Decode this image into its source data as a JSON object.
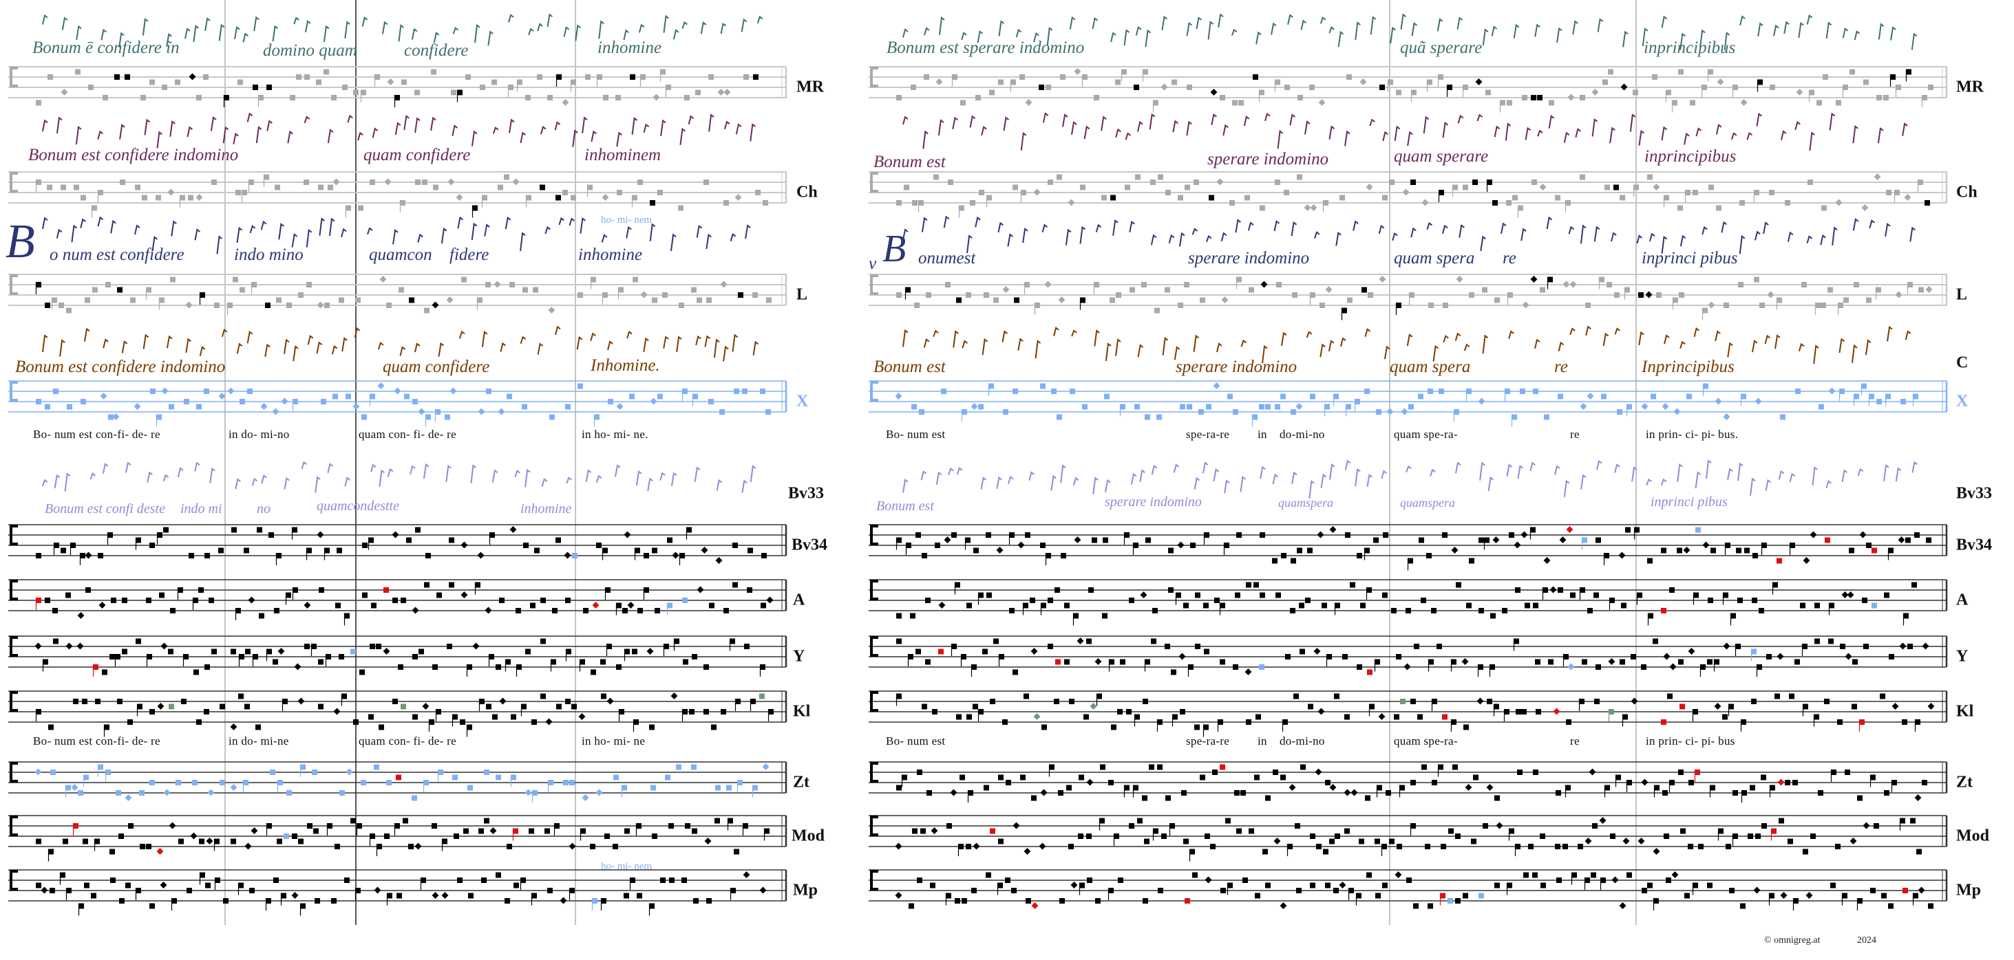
{
  "rows": [
    {
      "label": "MR",
      "staff": true,
      "color": "#a9a9a9"
    },
    {
      "label": "Ch",
      "staff": true,
      "color": "#a9a9a9"
    },
    {
      "label": "L",
      "staff": true,
      "color": "#a9a9a9"
    },
    {
      "label": "C",
      "staff": false
    },
    {
      "label": "X",
      "staff": true,
      "color": "#7fb0f5"
    },
    {
      "label": "Bv33",
      "staff": false
    },
    {
      "label": "Bv34",
      "staff": true,
      "color": "#000000"
    },
    {
      "label": "A",
      "staff": true,
      "color": "#000000"
    },
    {
      "label": "Y",
      "staff": true,
      "color": "#000000"
    },
    {
      "label": "Kl",
      "staff": true,
      "color": "#000000"
    },
    {
      "label": "Zt",
      "staff": true,
      "color": "#000000"
    },
    {
      "label": "Mod",
      "staff": true,
      "color": "#000000"
    },
    {
      "label": "Mp",
      "staff": true,
      "color": "#000000"
    }
  ],
  "manuscripts": {
    "MR": {
      "color": "#3f7070",
      "segments": [
        "Bonum ē confidere ĩn",
        "domino quam",
        "confidere",
        "inhomine",
        "Bonum est sperare indomino",
        "quã sperare",
        "inprincipibus"
      ]
    },
    "Ch": {
      "color": "#6b2a5e",
      "segments": [
        "Bonum est confidere indomino",
        "quam confidere",
        "inhominem",
        "Bonum est",
        "sperare indomino",
        "quam sperare",
        "inprincipibus"
      ]
    },
    "L": {
      "color": "#2d3775",
      "segments": [
        "B",
        "o num est confidere",
        "indo mino",
        "quamcon",
        "fidere",
        "inhomine",
        "v",
        "B",
        "onumest",
        "sperare indomino",
        "quam spera",
        "re",
        "inprinci pibus"
      ]
    },
    "C": {
      "color": "#7a3d00",
      "segments": [
        "Bonum est confidere indomino",
        "quam confidere",
        "Inhomine.",
        "Bonum est",
        "sperare indomino",
        "quam spera",
        "re",
        "Inprincipibus"
      ]
    },
    "Bv33": {
      "color": "#9a86d8",
      "segments": [
        "Bonum est confi deste",
        "indo mi",
        "no",
        "quamcondestte",
        "inhomine",
        "Bonum est",
        "sperare indomino",
        "quamspera",
        "quamspera",
        "inprinci pibus"
      ]
    }
  },
  "lyrics_1": [
    "Bo- num  est  con-fi- de- re",
    "in  do-  mi-no",
    "quam  con- fi- de-  re",
    "in  ho- mi- ne.",
    "Bo- num  est",
    "spe-ra-re",
    "in",
    "do-mi-no",
    "quam  spe-ra-",
    "re",
    "in  prin- ci-  pi- bus."
  ],
  "lyrics_2": [
    "Bo- num  est  con-fi- de- re",
    "in  do-  mi-ne",
    "quam  con- fi- de-  re",
    "in  ho- mi- ne",
    "Bo- num  est",
    "spe-ra-re",
    "in",
    "do-mi-no",
    "quam  spe-ra-",
    "re",
    "in  prin- ci-  pi- bus"
  ],
  "annotations": {
    "hominem_top": "ho- mi- nem",
    "hominem_bottom": "ho- mi- nem"
  },
  "footer": {
    "copyright": "© omnigreg.at",
    "year": "2024"
  },
  "accents": {
    "red": "#e01010",
    "green": "#6f9a78",
    "blue": "#7fb0f5",
    "grey": "#a9a9a9"
  }
}
